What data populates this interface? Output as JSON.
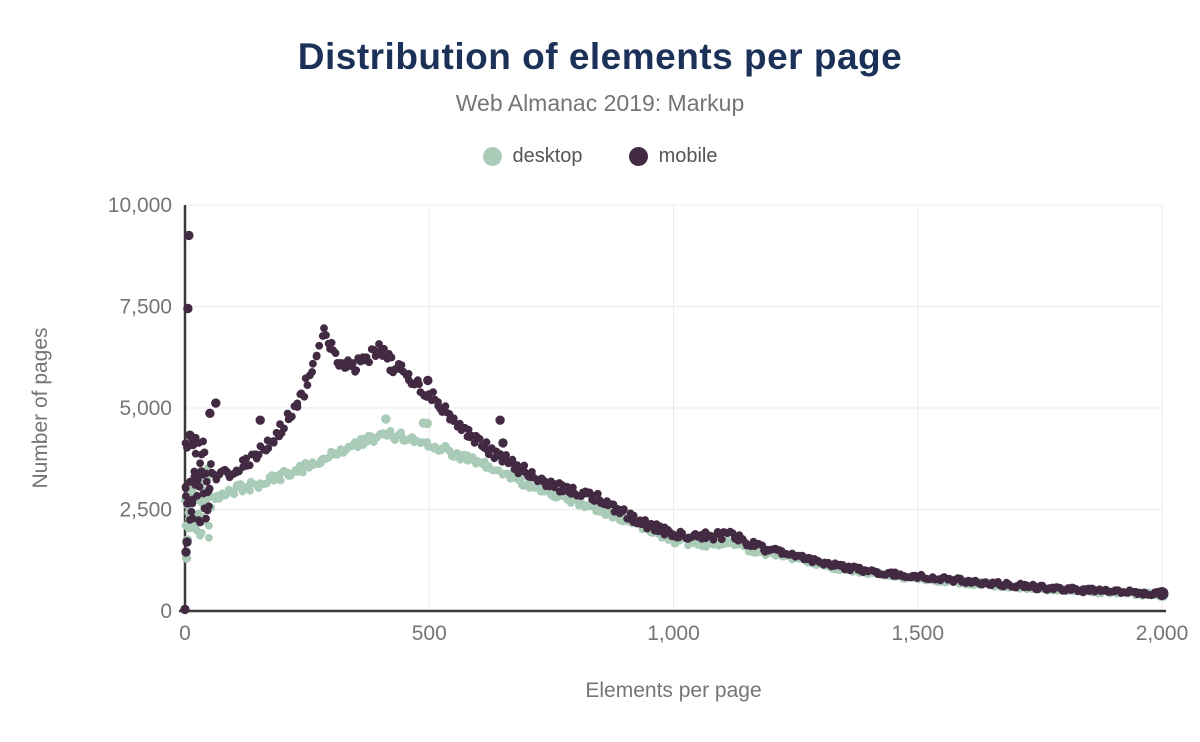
{
  "chart": {
    "title": "Distribution of elements per page",
    "subtitle": "Web Almanac 2019: Markup",
    "legend": [
      {
        "label": "desktop"
      },
      {
        "label": "mobile"
      }
    ]
  },
  "colors": {
    "title_text": "#1b3158",
    "subtitle_text": "#757575",
    "legend_text": "#555555",
    "tick_text": "#757575",
    "axis_line": "#3a3a3a",
    "gridline": "#ebebeb",
    "background": "#ffffff",
    "desktop_series": "#a9cbb7",
    "mobile_series": "#432a43"
  },
  "chart_data": {
    "type": "scatter",
    "title": "Distribution of elements per page",
    "subtitle": "Web Almanac 2019: Markup",
    "xlabel": "Elements per page",
    "ylabel": "Number of pages",
    "x_range": [
      0,
      2000
    ],
    "y_range": [
      0,
      10000
    ],
    "grid": true,
    "legend_position": "top",
    "x_ticks": [
      {
        "v": 0,
        "label": "0"
      },
      {
        "v": 500,
        "label": "500"
      },
      {
        "v": 1000,
        "label": "1,000"
      },
      {
        "v": 1500,
        "label": "1,500"
      },
      {
        "v": 2000,
        "label": "2,000"
      }
    ],
    "y_ticks": [
      {
        "v": 0,
        "label": "0"
      },
      {
        "v": 2500,
        "label": "2,500"
      },
      {
        "v": 5000,
        "label": "5,000"
      },
      {
        "v": 7500,
        "label": "7,500"
      },
      {
        "v": 10000,
        "label": "10,000"
      }
    ],
    "series": [
      {
        "name": "desktop",
        "color": "#a9cbb7",
        "anchors": [
          [
            0,
            2650
          ],
          [
            10,
            2480
          ],
          [
            20,
            2560
          ],
          [
            30,
            2650
          ],
          [
            40,
            2720
          ],
          [
            60,
            2830
          ],
          [
            80,
            2900
          ],
          [
            100,
            2980
          ],
          [
            130,
            3060
          ],
          [
            160,
            3160
          ],
          [
            200,
            3330
          ],
          [
            240,
            3520
          ],
          [
            280,
            3720
          ],
          [
            320,
            3950
          ],
          [
            360,
            4150
          ],
          [
            400,
            4300
          ],
          [
            420,
            4340
          ],
          [
            440,
            4300
          ],
          [
            460,
            4240
          ],
          [
            480,
            4180
          ],
          [
            500,
            4120
          ],
          [
            520,
            4030
          ],
          [
            540,
            3940
          ],
          [
            560,
            3840
          ],
          [
            580,
            3740
          ],
          [
            600,
            3640
          ],
          [
            620,
            3540
          ],
          [
            640,
            3440
          ],
          [
            660,
            3340
          ],
          [
            680,
            3240
          ],
          [
            700,
            3140
          ],
          [
            720,
            3050
          ],
          [
            740,
            2960
          ],
          [
            760,
            2870
          ],
          [
            780,
            2780
          ],
          [
            800,
            2690
          ],
          [
            820,
            2600
          ],
          [
            840,
            2510
          ],
          [
            860,
            2420
          ],
          [
            880,
            2330
          ],
          [
            900,
            2240
          ],
          [
            920,
            2160
          ],
          [
            940,
            2080
          ],
          [
            960,
            1990
          ],
          [
            980,
            1860
          ],
          [
            1000,
            1750
          ],
          [
            1030,
            1680
          ],
          [
            1060,
            1650
          ],
          [
            1090,
            1650
          ],
          [
            1110,
            1670
          ],
          [
            1130,
            1620
          ],
          [
            1150,
            1560
          ],
          [
            1175,
            1490
          ],
          [
            1200,
            1420
          ],
          [
            1230,
            1340
          ],
          [
            1260,
            1260
          ],
          [
            1300,
            1140
          ],
          [
            1340,
            1050
          ],
          [
            1380,
            970
          ],
          [
            1420,
            910
          ],
          [
            1460,
            855
          ],
          [
            1500,
            815
          ],
          [
            1550,
            755
          ],
          [
            1600,
            695
          ],
          [
            1650,
            645
          ],
          [
            1700,
            595
          ],
          [
            1750,
            555
          ],
          [
            1800,
            515
          ],
          [
            1850,
            480
          ],
          [
            1900,
            452
          ],
          [
            1950,
            425
          ],
          [
            2000,
            402
          ]
        ],
        "outliers": [
          [
            3,
            1300
          ],
          [
            5,
            1750
          ],
          [
            8,
            2050
          ],
          [
            411,
            4730
          ],
          [
            488,
            4630
          ],
          [
            496,
            4620
          ]
        ]
      },
      {
        "name": "mobile",
        "color": "#432a43",
        "anchors": [
          [
            0,
            2750
          ],
          [
            10,
            2900
          ],
          [
            20,
            3000
          ],
          [
            30,
            3080
          ],
          [
            40,
            3150
          ],
          [
            60,
            3280
          ],
          [
            80,
            3380
          ],
          [
            100,
            3480
          ],
          [
            120,
            3600
          ],
          [
            140,
            3760
          ],
          [
            160,
            3950
          ],
          [
            180,
            4220
          ],
          [
            200,
            4550
          ],
          [
            220,
            4900
          ],
          [
            235,
            5150
          ],
          [
            250,
            5600
          ],
          [
            260,
            5950
          ],
          [
            270,
            6350
          ],
          [
            280,
            6800
          ],
          [
            288,
            6830
          ],
          [
            295,
            6600
          ],
          [
            305,
            6350
          ],
          [
            315,
            6150
          ],
          [
            330,
            6080
          ],
          [
            345,
            6040
          ],
          [
            360,
            6120
          ],
          [
            375,
            6220
          ],
          [
            390,
            6400
          ],
          [
            400,
            6420
          ],
          [
            410,
            6280
          ],
          [
            420,
            6120
          ],
          [
            435,
            5960
          ],
          [
            450,
            5830
          ],
          [
            465,
            5690
          ],
          [
            480,
            5520
          ],
          [
            495,
            5400
          ],
          [
            510,
            5240
          ],
          [
            525,
            5070
          ],
          [
            540,
            4880
          ],
          [
            555,
            4660
          ],
          [
            570,
            4450
          ],
          [
            585,
            4290
          ],
          [
            600,
            4160
          ],
          [
            620,
            3990
          ],
          [
            640,
            3830
          ],
          [
            660,
            3680
          ],
          [
            680,
            3530
          ],
          [
            700,
            3390
          ],
          [
            720,
            3270
          ],
          [
            740,
            3170
          ],
          [
            760,
            3070
          ],
          [
            780,
            2990
          ],
          [
            800,
            2920
          ],
          [
            820,
            2860
          ],
          [
            840,
            2800
          ],
          [
            860,
            2690
          ],
          [
            880,
            2550
          ],
          [
            900,
            2410
          ],
          [
            920,
            2270
          ],
          [
            940,
            2150
          ],
          [
            960,
            2050
          ],
          [
            980,
            1970
          ],
          [
            1000,
            1910
          ],
          [
            1030,
            1870
          ],
          [
            1060,
            1850
          ],
          [
            1090,
            1850
          ],
          [
            1110,
            1890
          ],
          [
            1130,
            1810
          ],
          [
            1150,
            1710
          ],
          [
            1175,
            1610
          ],
          [
            1200,
            1510
          ],
          [
            1230,
            1410
          ],
          [
            1260,
            1330
          ],
          [
            1300,
            1200
          ],
          [
            1340,
            1100
          ],
          [
            1380,
            1020
          ],
          [
            1420,
            950
          ],
          [
            1460,
            890
          ],
          [
            1500,
            850
          ],
          [
            1550,
            790
          ],
          [
            1600,
            730
          ],
          [
            1650,
            680
          ],
          [
            1700,
            630
          ],
          [
            1750,
            585
          ],
          [
            1800,
            545
          ],
          [
            1850,
            505
          ],
          [
            1900,
            475
          ],
          [
            1950,
            450
          ],
          [
            2000,
            430
          ]
        ],
        "outliers": [
          [
            0,
            40
          ],
          [
            2,
            1450
          ],
          [
            4,
            1700
          ],
          [
            6,
            7450
          ],
          [
            8,
            9250
          ],
          [
            10,
            4330
          ],
          [
            16,
            4100
          ],
          [
            51,
            4870
          ],
          [
            63,
            5120
          ],
          [
            154,
            4700
          ],
          [
            497,
            5680
          ],
          [
            645,
            4700
          ],
          [
            651,
            4140
          ]
        ]
      }
    ],
    "render": {
      "point_step": 4,
      "dot_radius": 3.9,
      "outlier_radius": 4.7,
      "end_cap_radius": 6.5,
      "seed": 42,
      "x_jitter": 1.2,
      "noise": {
        "desktop": [
          [
            55,
            380
          ],
          [
            200,
            120
          ],
          [
            450,
            110
          ],
          [
            700,
            100
          ],
          [
            1200,
            90
          ],
          [
            2001,
            50
          ]
        ],
        "mobile": [
          [
            55,
            420
          ],
          [
            200,
            160
          ],
          [
            450,
            200
          ],
          [
            700,
            140
          ],
          [
            1200,
            110
          ],
          [
            2001,
            55
          ]
        ]
      },
      "cluster": {
        "x_max": 50,
        "step": 3,
        "per_x": 2,
        "desktop_range": [
          1800,
          3550
        ],
        "mobile_range": [
          2150,
          4300
        ]
      }
    }
  }
}
